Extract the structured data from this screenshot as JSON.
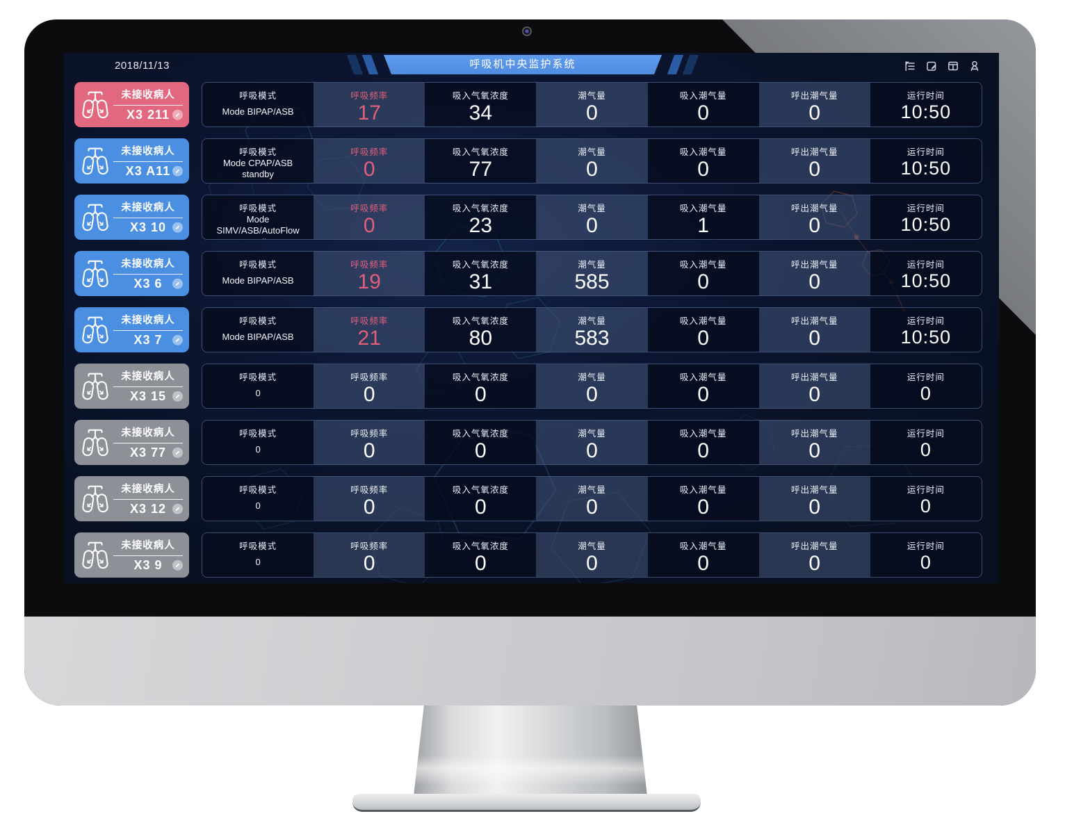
{
  "header": {
    "date": "2018/11/13",
    "title": "呼吸机中央监护系统",
    "toolbar_icons": [
      "list-tree-icon",
      "edit-note-icon",
      "layout-icon",
      "user-icon"
    ]
  },
  "strings": {
    "patient_label": "未接收病人"
  },
  "columns": [
    {
      "key": "mode",
      "label": "呼吸模式"
    },
    {
      "key": "rate",
      "label": "呼吸频率"
    },
    {
      "key": "fio2",
      "label": "吸入气氧浓度"
    },
    {
      "key": "tidal",
      "label": "潮气量"
    },
    {
      "key": "tidal_in",
      "label": "吸入潮气量"
    },
    {
      "key": "tidal_out",
      "label": "呼出潮气量"
    },
    {
      "key": "runtime",
      "label": "运行时间"
    }
  ],
  "rows": [
    {
      "id": "X3 211",
      "status": "alarm",
      "active": true,
      "mode": "Mode BIPAP/ASB",
      "rate": "17",
      "fio2": "34",
      "tidal": "0",
      "tidal_in": "0",
      "tidal_out": "0",
      "runtime": "10:50"
    },
    {
      "id": "X3 A11",
      "status": "online",
      "active": true,
      "mode": "Mode CPAP/ASB standby",
      "rate": "0",
      "fio2": "77",
      "tidal": "0",
      "tidal_in": "0",
      "tidal_out": "0",
      "runtime": "10:50"
    },
    {
      "id": "X3 10",
      "status": "online",
      "active": true,
      "mode": "Mode SIMV/ASB/AutoFlow standby",
      "rate": "0",
      "fio2": "23",
      "tidal": "0",
      "tidal_in": "1",
      "tidal_out": "0",
      "runtime": "10:50"
    },
    {
      "id": "X3 6",
      "status": "online",
      "active": true,
      "mode": "Mode BIPAP/ASB",
      "rate": "19",
      "fio2": "31",
      "tidal": "585",
      "tidal_in": "0",
      "tidal_out": "0",
      "runtime": "10:50"
    },
    {
      "id": "X3 7",
      "status": "online",
      "active": true,
      "mode": "Mode BIPAP/ASB",
      "rate": "21",
      "fio2": "80",
      "tidal": "583",
      "tidal_in": "0",
      "tidal_out": "0",
      "runtime": "10:50"
    },
    {
      "id": "X3 15",
      "status": "offline",
      "active": false,
      "mode": "0",
      "rate": "0",
      "fio2": "0",
      "tidal": "0",
      "tidal_in": "0",
      "tidal_out": "0",
      "runtime": "0"
    },
    {
      "id": "X3 77",
      "status": "offline",
      "active": false,
      "mode": "0",
      "rate": "0",
      "fio2": "0",
      "tidal": "0",
      "tidal_in": "0",
      "tidal_out": "0",
      "runtime": "0"
    },
    {
      "id": "X3 12",
      "status": "offline",
      "active": false,
      "mode": "0",
      "rate": "0",
      "fio2": "0",
      "tidal": "0",
      "tidal_in": "0",
      "tidal_out": "0",
      "runtime": "0"
    },
    {
      "id": "X3 9",
      "status": "offline",
      "active": false,
      "mode": "0",
      "rate": "0",
      "fio2": "0",
      "tidal": "0",
      "tidal_in": "0",
      "tidal_out": "0",
      "runtime": "0"
    }
  ],
  "colors": {
    "alarm_pink": "#e2687f",
    "device_blue": "#4a8fe2",
    "offline_gray": "#8d9197",
    "banner_blue": "#5593e8",
    "accent_value_pink": "#e0607c",
    "screen_bg": "#0a1126"
  }
}
